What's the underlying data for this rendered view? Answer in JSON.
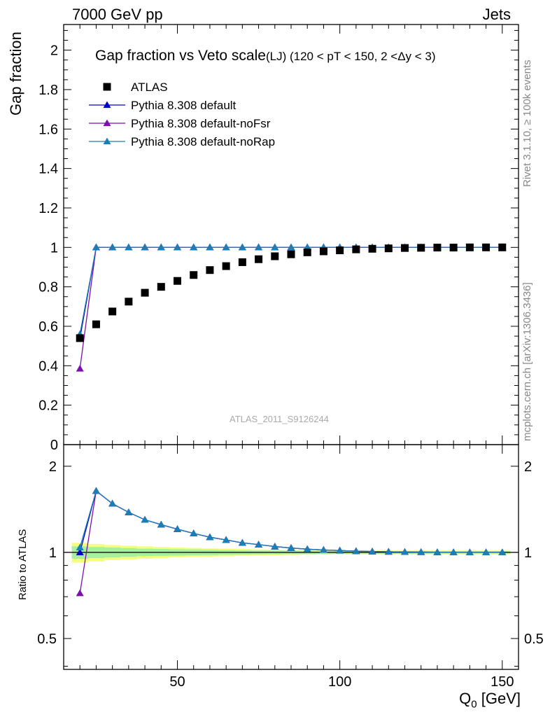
{
  "header": {
    "left": "7000 GeV pp",
    "right": "Jets"
  },
  "side_labels": {
    "rivet": "Rivet 3.1.10, ≥ 100k events",
    "mcplots": "mcplots.cern.ch [arXiv:1306.3436]"
  },
  "watermark": "ATLAS_2011_S9126244",
  "colors": {
    "data": "#000000",
    "default": "#0000cc",
    "noFsr": "#7a0fae",
    "noRap": "#1a7fb5",
    "band_inner": "#a8f0a0",
    "band_outer": "#f4ff80"
  },
  "chart_data": [
    {
      "type": "scatter",
      "title": "Gap fraction vs Veto scale",
      "subtitle": "(LJ) (120 < pT < 150, 2 <Δy < 3)",
      "ylabel": "Gap fraction",
      "xlabel": "",
      "xlim": [
        15,
        155
      ],
      "ylim": [
        0,
        2.13
      ],
      "yticks": [
        0,
        0.2,
        0.4,
        0.6,
        0.8,
        1,
        1.2,
        1.4,
        1.6,
        1.8,
        2
      ],
      "ytick_labels": [
        "0",
        "0.2",
        "0.4",
        "0.6",
        "0.8",
        "1",
        "1.2",
        "1.4",
        "1.6",
        "1.8",
        "2"
      ],
      "x": [
        20,
        25,
        30,
        35,
        40,
        45,
        50,
        55,
        60,
        65,
        70,
        75,
        80,
        85,
        90,
        95,
        100,
        105,
        110,
        115,
        120,
        125,
        130,
        135,
        140,
        145,
        150
      ],
      "series": [
        {
          "name": "ATLAS",
          "marker": "square",
          "values": [
            0.54,
            0.61,
            0.675,
            0.725,
            0.77,
            0.8,
            0.83,
            0.86,
            0.885,
            0.905,
            0.925,
            0.94,
            0.955,
            0.965,
            0.975,
            0.98,
            0.985,
            0.99,
            0.993,
            0.995,
            0.997,
            0.998,
            0.999,
            0.999,
            1.0,
            1.0,
            1.0
          ]
        },
        {
          "name": "Pythia 8.308 default",
          "marker": "triangle",
          "values": [
            0.54,
            1,
            1,
            1,
            1,
            1,
            1,
            1,
            1,
            1,
            1,
            1,
            1,
            1,
            1,
            1,
            1,
            1,
            1,
            1,
            1,
            1,
            1,
            1,
            1,
            1,
            1
          ]
        },
        {
          "name": "Pythia 8.308 default-noFsr",
          "marker": "triangle",
          "values": [
            0.385,
            1,
            1,
            1,
            1,
            1,
            1,
            1,
            1,
            1,
            1,
            1,
            1,
            1,
            1,
            1,
            1,
            1,
            1,
            1,
            1,
            1,
            1,
            1,
            1,
            1,
            1
          ]
        },
        {
          "name": "Pythia 8.308 default-noRap",
          "marker": "triangle",
          "values": [
            0.56,
            1,
            1,
            1,
            1,
            1,
            1,
            1,
            1,
            1,
            1,
            1,
            1,
            1,
            1,
            1,
            1,
            1,
            1,
            1,
            1,
            1,
            1,
            1,
            1,
            1,
            1
          ]
        }
      ],
      "legend": [
        "ATLAS",
        "Pythia 8.308 default",
        "Pythia 8.308 default-noFsr",
        "Pythia 8.308 default-noRap"
      ],
      "legend_position": "top-left"
    },
    {
      "type": "line",
      "ylabel": "Ratio to ATLAS",
      "xlabel": "Q₀ [GeV]",
      "xlabel_main": "Q",
      "xlabel_sub": "0",
      "xlabel_unit": " [GeV]",
      "xlim": [
        15,
        155
      ],
      "ylim": [
        0.39,
        2.38
      ],
      "log_y": true,
      "xticks": [
        50,
        100,
        150
      ],
      "xtick_labels": [
        "50",
        "100",
        "150"
      ],
      "yticks": [
        0.5,
        1,
        2
      ],
      "ytick_labels": [
        "0.5",
        "1",
        "2"
      ],
      "x": [
        20,
        25,
        30,
        35,
        40,
        45,
        50,
        55,
        60,
        65,
        70,
        75,
        80,
        85,
        90,
        95,
        100,
        105,
        110,
        115,
        120,
        125,
        130,
        135,
        140,
        145,
        150
      ],
      "band_inner": [
        0.05,
        0.045,
        0.04,
        0.035,
        0.03,
        0.028,
        0.026,
        0.024,
        0.022,
        0.02,
        0.018,
        0.016,
        0.015,
        0.014,
        0.013,
        0.012,
        0.011,
        0.01,
        0.01,
        0.01,
        0.01,
        0.01,
        0.01,
        0.01,
        0.01,
        0.01,
        0.01
      ],
      "band_outer": [
        0.08,
        0.07,
        0.06,
        0.055,
        0.05,
        0.045,
        0.04,
        0.037,
        0.034,
        0.031,
        0.028,
        0.025,
        0.023,
        0.021,
        0.019,
        0.018,
        0.017,
        0.016,
        0.015,
        0.015,
        0.015,
        0.015,
        0.015,
        0.015,
        0.015,
        0.015,
        0.015
      ],
      "series": [
        {
          "name": "Pythia 8.308 default",
          "values": [
            1.0,
            1.64,
            1.48,
            1.38,
            1.3,
            1.25,
            1.205,
            1.165,
            1.13,
            1.105,
            1.08,
            1.065,
            1.048,
            1.036,
            1.026,
            1.02,
            1.015,
            1.01,
            1.007,
            1.005,
            1.003,
            1.002,
            1.001,
            1.001,
            1.0,
            1.0,
            1.0
          ]
        },
        {
          "name": "Pythia 8.308 default-noFsr",
          "values": [
            0.72,
            1.64,
            1.48,
            1.38,
            1.3,
            1.25,
            1.205,
            1.165,
            1.13,
            1.105,
            1.08,
            1.065,
            1.048,
            1.036,
            1.026,
            1.02,
            1.015,
            1.01,
            1.007,
            1.005,
            1.003,
            1.002,
            1.001,
            1.001,
            1.0,
            1.0,
            1.0
          ]
        },
        {
          "name": "Pythia 8.308 default-noRap",
          "values": [
            1.04,
            1.64,
            1.48,
            1.38,
            1.3,
            1.25,
            1.205,
            1.165,
            1.13,
            1.105,
            1.08,
            1.065,
            1.048,
            1.036,
            1.026,
            1.02,
            1.015,
            1.01,
            1.007,
            1.005,
            1.003,
            1.002,
            1.001,
            1.001,
            1.0,
            1.0,
            1.0
          ]
        }
      ]
    }
  ]
}
